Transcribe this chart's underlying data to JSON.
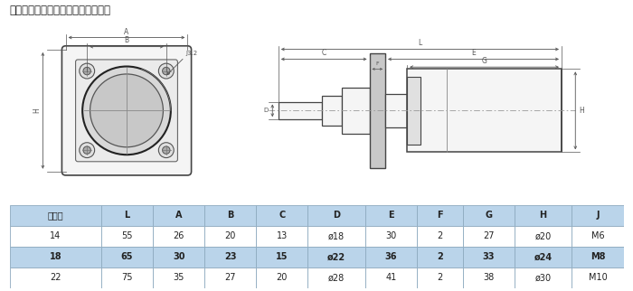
{
  "title": "插座：墙式安装（尾部外螺纹连接）",
  "title_fontsize": 8.5,
  "table_headers": [
    "壳体号",
    "L",
    "A",
    "B",
    "C",
    "D",
    "E",
    "F",
    "G",
    "H",
    "J"
  ],
  "table_rows": [
    [
      "14",
      "55",
      "26",
      "20",
      "13",
      "ø18",
      "30",
      "2",
      "27",
      "ø20",
      "M6"
    ],
    [
      "18",
      "65",
      "30",
      "23",
      "15",
      "ø22",
      "36",
      "2",
      "33",
      "ø24",
      "M8"
    ],
    [
      "22",
      "75",
      "35",
      "27",
      "20",
      "ø28",
      "41",
      "2",
      "38",
      "ø30",
      "M10"
    ]
  ],
  "header_bg": "#bad4ea",
  "row_bg_normal": "#ffffff",
  "highlight_row": 1,
  "highlight_bg": "#bad4ea",
  "border_color": "#8eaabf",
  "bg_color": "#ffffff",
  "line_color": "#444444",
  "dim_color": "#555555",
  "body_fill": "#f5f5f5",
  "dark_fill": "#c8c8c8"
}
